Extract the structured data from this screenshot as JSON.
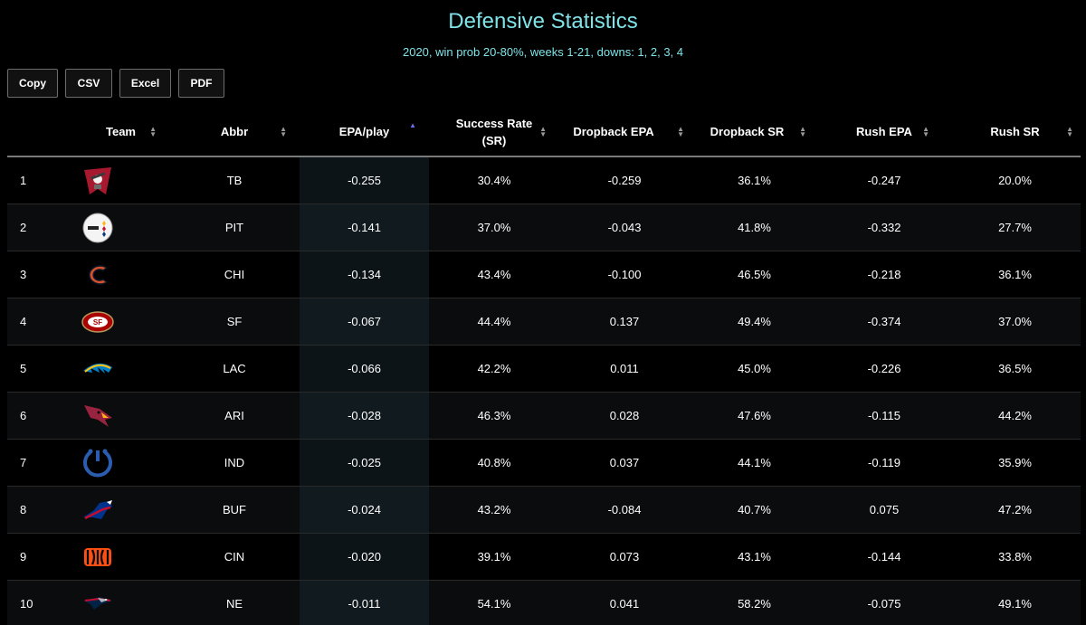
{
  "title": "Defensive Statistics",
  "subtitle": "2020, win prob 20-80%, weeks 1-21, downs: 1, 2, 3, 4",
  "buttons": {
    "copy": "Copy",
    "csv": "CSV",
    "excel": "Excel",
    "pdf": "PDF"
  },
  "columns": {
    "team": "Team",
    "abbr": "Abbr",
    "epa_play": "EPA/play",
    "success_rate_line1": "Success Rate",
    "success_rate_line2": "(SR)",
    "dropback_epa": "Dropback EPA",
    "dropback_sr": "Dropback SR",
    "rush_epa": "Rush EPA",
    "rush_sr": "Rush SR"
  },
  "colors": {
    "title": "#7fe3e8",
    "sort_active": "#6d6df0"
  },
  "rows": [
    {
      "rank": "1",
      "logo": "buccaneers-logo",
      "abbr": "TB",
      "epa": "-0.255",
      "sr": "30.4%",
      "db_epa": "-0.259",
      "db_sr": "36.1%",
      "rush_epa": "-0.247",
      "rush_sr": "20.0%"
    },
    {
      "rank": "2",
      "logo": "steelers-logo",
      "abbr": "PIT",
      "epa": "-0.141",
      "sr": "37.0%",
      "db_epa": "-0.043",
      "db_sr": "41.8%",
      "rush_epa": "-0.332",
      "rush_sr": "27.7%"
    },
    {
      "rank": "3",
      "logo": "bears-logo",
      "abbr": "CHI",
      "epa": "-0.134",
      "sr": "43.4%",
      "db_epa": "-0.100",
      "db_sr": "46.5%",
      "rush_epa": "-0.218",
      "rush_sr": "36.1%"
    },
    {
      "rank": "4",
      "logo": "49ers-logo",
      "abbr": "SF",
      "epa": "-0.067",
      "sr": "44.4%",
      "db_epa": "0.137",
      "db_sr": "49.4%",
      "rush_epa": "-0.374",
      "rush_sr": "37.0%"
    },
    {
      "rank": "5",
      "logo": "chargers-logo",
      "abbr": "LAC",
      "epa": "-0.066",
      "sr": "42.2%",
      "db_epa": "0.011",
      "db_sr": "45.0%",
      "rush_epa": "-0.226",
      "rush_sr": "36.5%"
    },
    {
      "rank": "6",
      "logo": "cardinals-logo",
      "abbr": "ARI",
      "epa": "-0.028",
      "sr": "46.3%",
      "db_epa": "0.028",
      "db_sr": "47.6%",
      "rush_epa": "-0.115",
      "rush_sr": "44.2%"
    },
    {
      "rank": "7",
      "logo": "colts-logo",
      "abbr": "IND",
      "epa": "-0.025",
      "sr": "40.8%",
      "db_epa": "0.037",
      "db_sr": "44.1%",
      "rush_epa": "-0.119",
      "rush_sr": "35.9%"
    },
    {
      "rank": "8",
      "logo": "bills-logo",
      "abbr": "BUF",
      "epa": "-0.024",
      "sr": "43.2%",
      "db_epa": "-0.084",
      "db_sr": "40.7%",
      "rush_epa": "0.075",
      "rush_sr": "47.2%"
    },
    {
      "rank": "9",
      "logo": "bengals-logo",
      "abbr": "CIN",
      "epa": "-0.020",
      "sr": "39.1%",
      "db_epa": "0.073",
      "db_sr": "43.1%",
      "rush_epa": "-0.144",
      "rush_sr": "33.8%"
    },
    {
      "rank": "10",
      "logo": "patriots-logo",
      "abbr": "NE",
      "epa": "-0.011",
      "sr": "54.1%",
      "db_epa": "0.041",
      "db_sr": "58.2%",
      "rush_epa": "-0.075",
      "rush_sr": "49.1%"
    }
  ]
}
